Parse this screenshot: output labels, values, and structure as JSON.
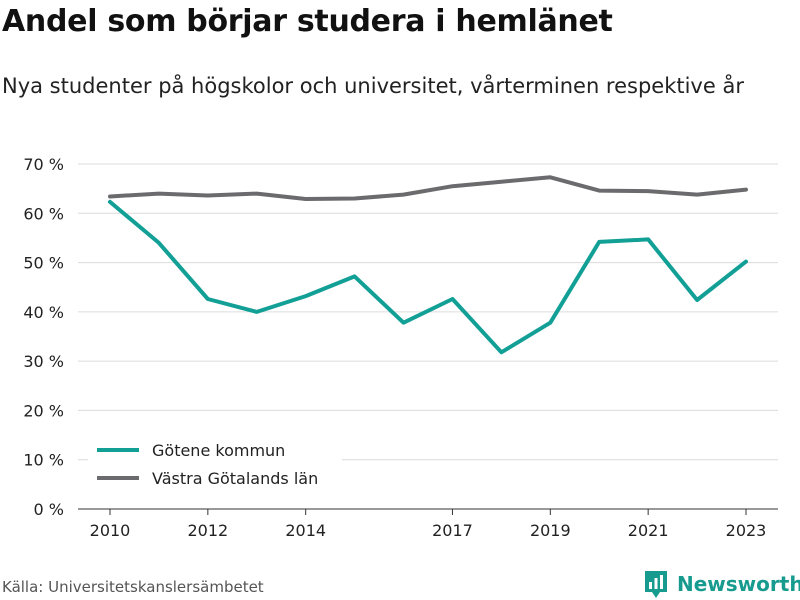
{
  "chart_data": {
    "type": "line",
    "title": "Andel som börjar studera i hemlänet",
    "subtitle": "Nya studenter på högskolor och universitet, vårterminen respektive år",
    "x": [
      2010,
      2011,
      2012,
      2013,
      2014,
      2015,
      2016,
      2017,
      2018,
      2019,
      2020,
      2021,
      2022,
      2023
    ],
    "x_ticks": [
      2010,
      2012,
      2014,
      2017,
      2019,
      2021,
      2023
    ],
    "y_ticks": [
      0,
      10,
      20,
      30,
      40,
      50,
      60,
      70
    ],
    "y_tick_labels": [
      "0 %",
      "10 %",
      "20 %",
      "30 %",
      "40 %",
      "50 %",
      "60 %",
      "70 %"
    ],
    "ylim": [
      0,
      70
    ],
    "xlim": [
      2010,
      2023
    ],
    "grid": true,
    "legend_position": "bottom-left",
    "series": [
      {
        "name": "Götene kommun",
        "color": "#12a096",
        "values": [
          62.3,
          54.0,
          42.6,
          40.0,
          43.2,
          47.2,
          37.8,
          42.6,
          31.8,
          37.8,
          54.2,
          54.7,
          42.4,
          50.2
        ]
      },
      {
        "name": "Västra Götalands län",
        "color": "#6b6b6e",
        "values": [
          63.4,
          64.0,
          63.6,
          64.0,
          62.9,
          63.0,
          63.8,
          65.5,
          66.4,
          67.3,
          64.6,
          64.5,
          63.8,
          64.8
        ]
      }
    ]
  },
  "footer": {
    "source": "Källa: Universitetskanslersämbetet",
    "brand": "Newsworthy",
    "brand_color": "#169b8e",
    "brand_icon": "bar-chart-pin-icon"
  }
}
